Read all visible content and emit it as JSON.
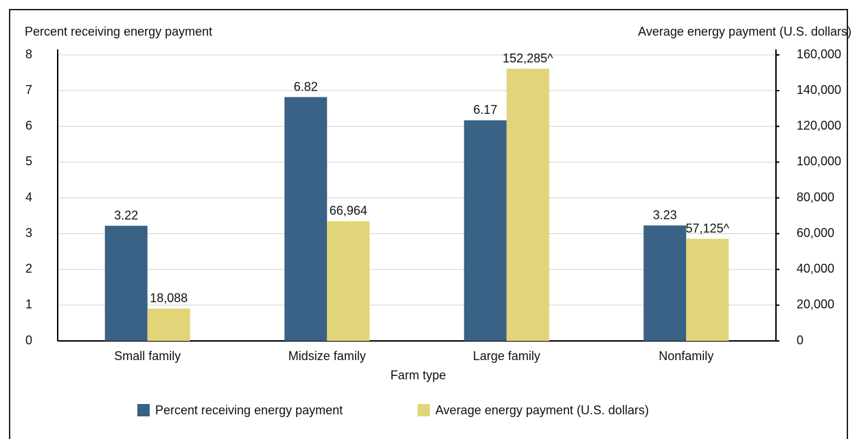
{
  "chart_data": {
    "type": "bar",
    "xlabel": "Farm type",
    "ylabel": "Percent receiving energy payment",
    "y2label": "Average energy payment (U.S. dollars)",
    "categories": [
      "Small family",
      "Midsize family",
      "Large family",
      "Nonfamily"
    ],
    "series": [
      {
        "name": "Percent receiving energy payment",
        "color": "#3a6186",
        "values": [
          3.22,
          6.82,
          6.17,
          3.23
        ]
      },
      {
        "name": "Average energy payment (U.S. dollars)",
        "color": "#e2d479",
        "axis": "y2",
        "values": [
          18088,
          66964,
          152285,
          57125
        ],
        "value_labels": [
          "18,088",
          "66,964",
          "152,285^",
          "57,125^"
        ]
      }
    ],
    "ylim": [
      0,
      8
    ],
    "yticks": [
      0,
      1,
      2,
      3,
      4,
      5,
      6,
      7,
      8
    ],
    "y2lim": [
      0,
      160000
    ],
    "y2ticks": [
      0,
      {
        "value": 20000,
        "label": "20,000"
      },
      {
        "value": 40000,
        "label": "40,000"
      },
      {
        "value": 60000,
        "label": "60,000"
      },
      {
        "value": 80000,
        "label": "80,000"
      },
      {
        "value": 100000,
        "label": "100,000"
      },
      {
        "value": 120000,
        "label": "120,000"
      },
      {
        "value": 140000,
        "label": "140,000"
      },
      {
        "value": 160000,
        "label": "160,000"
      }
    ],
    "grid": true,
    "legend": "bottom"
  }
}
